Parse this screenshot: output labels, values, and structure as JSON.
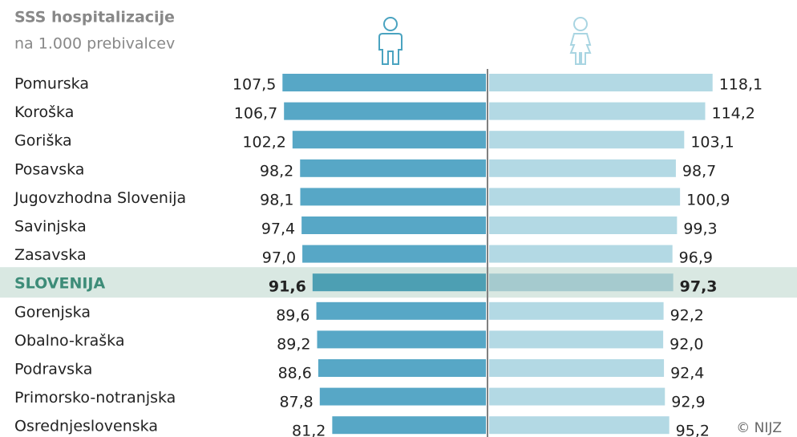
{
  "chart_data": {
    "type": "butterfly",
    "title": "SSS hospitalizacije",
    "subtitle": "na 1.000 prebivalcev",
    "credit": "© NIJZ",
    "categories": [
      "Pomurska",
      "Koroška",
      "Goriška",
      "Posavska",
      "Jugovzhodna Slovenija",
      "Savinjska",
      "Zasavska",
      "SLOVENIJA",
      "Gorenjska",
      "Obalno-kraška",
      "Podravska",
      "Primorsko-notranjska",
      "Osrednjeslovenska"
    ],
    "highlight": 7,
    "series": [
      {
        "color": "#57a7c6",
        "highlight_color": "#4d9fb3",
        "values": [
          107.5,
          106.7,
          102.2,
          98.2,
          98.1,
          97.4,
          97.0,
          91.6,
          89.6,
          89.2,
          88.6,
          87.8,
          81.2
        ],
        "value_labels": [
          "107,5",
          "106,7",
          "102,2",
          "98,2",
          "98,1",
          "97,4",
          "97,0",
          "91,6",
          "89,6",
          "89,2",
          "88,6",
          "87,8",
          "81,2"
        ]
      },
      {
        "color": "#b3d9e4",
        "highlight_color": "#a5cace",
        "values": [
          118.1,
          114.2,
          103.1,
          98.7,
          100.9,
          99.3,
          96.9,
          97.3,
          92.2,
          92.0,
          92.4,
          92.9,
          95.2
        ],
        "value_labels": [
          "118,1",
          "114,2",
          "103,1",
          "98,7",
          "100,9",
          "99,3",
          "96,9",
          "97,3",
          "92,2",
          "92,0",
          "92,4",
          "92,9",
          "95,2"
        ]
      }
    ]
  }
}
